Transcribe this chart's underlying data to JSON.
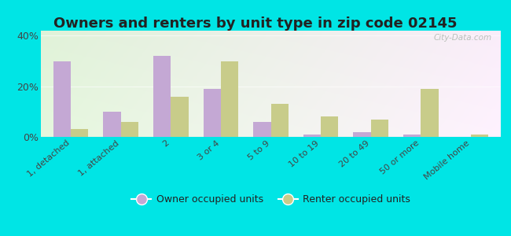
{
  "title": "Owners and renters by unit type in zip code 02145",
  "categories": [
    "1, detached",
    "1, attached",
    "2",
    "3 or 4",
    "5 to 9",
    "10 to 19",
    "20 to 49",
    "50 or more",
    "Mobile home"
  ],
  "owner_values": [
    30,
    10,
    32,
    19,
    6,
    1,
    2,
    1,
    0
  ],
  "renter_values": [
    3,
    6,
    16,
    30,
    13,
    8,
    7,
    19,
    1
  ],
  "owner_color": "#c4a8d4",
  "renter_color": "#c8cc8a",
  "background_outer": "#00e5e5",
  "ylim": [
    0,
    42
  ],
  "yticks": [
    0,
    20,
    40
  ],
  "ytick_labels": [
    "0%",
    "20%",
    "40%"
  ],
  "legend_owner": "Owner occupied units",
  "legend_renter": "Renter occupied units",
  "bar_width": 0.35,
  "title_fontsize": 13,
  "watermark": "City-Data.com"
}
